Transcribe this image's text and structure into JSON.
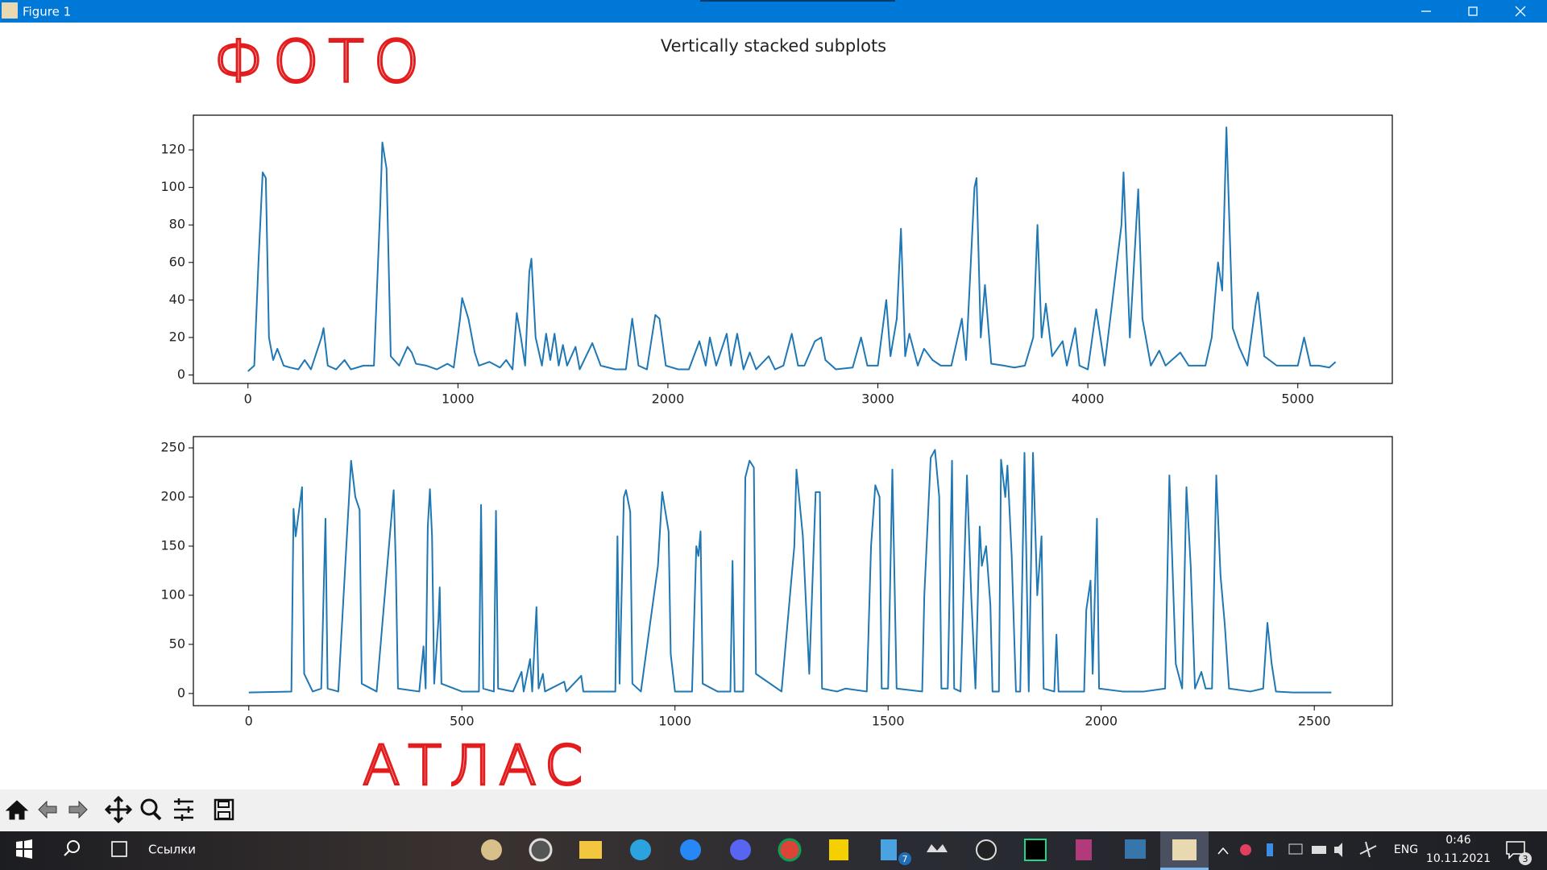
{
  "window": {
    "title": "Figure 1"
  },
  "figure": {
    "title": "Vertically stacked subplots"
  },
  "annotations": [
    "ФОТО",
    "АТЛАС"
  ],
  "taskbar": {
    "search_label": "Ссылки",
    "language": "ENG",
    "time": "0:46",
    "date": "10.11.2021",
    "badges": [
      "7",
      "3"
    ]
  },
  "chart_data": [
    {
      "type": "line",
      "color": "#1f77b4",
      "xlim": [
        -260,
        5450
      ],
      "ylim": [
        -4.5,
        138.5
      ],
      "xticks": [
        0,
        1000,
        2000,
        3000,
        4000,
        5000
      ],
      "yticks": [
        0,
        20,
        40,
        60,
        80,
        100,
        120
      ],
      "x": [
        0,
        30,
        50,
        70,
        85,
        100,
        120,
        140,
        170,
        200,
        240,
        270,
        300,
        350,
        360,
        380,
        420,
        460,
        490,
        550,
        600,
        630,
        640,
        660,
        680,
        720,
        760,
        780,
        800,
        850,
        900,
        950,
        980,
        1010,
        1020,
        1050,
        1080,
        1100,
        1150,
        1200,
        1230,
        1260,
        1280,
        1300,
        1320,
        1340,
        1350,
        1370,
        1400,
        1420,
        1440,
        1460,
        1480,
        1500,
        1520,
        1560,
        1580,
        1640,
        1680,
        1750,
        1800,
        1830,
        1860,
        1900,
        1940,
        1960,
        1990,
        2050,
        2100,
        2150,
        2180,
        2200,
        2230,
        2280,
        2300,
        2330,
        2360,
        2390,
        2420,
        2480,
        2510,
        2550,
        2590,
        2620,
        2650,
        2700,
        2730,
        2750,
        2800,
        2880,
        2920,
        2950,
        3000,
        3040,
        3060,
        3090,
        3110,
        3130,
        3150,
        3190,
        3220,
        3260,
        3300,
        3350,
        3400,
        3420,
        3460,
        3470,
        3490,
        3510,
        3540,
        3600,
        3650,
        3700,
        3740,
        3760,
        3780,
        3800,
        3830,
        3880,
        3900,
        3940,
        3960,
        4000,
        4040,
        4060,
        4080,
        4160,
        4170,
        4200,
        4240,
        4260,
        4300,
        4340,
        4370,
        4440,
        4480,
        4560,
        4590,
        4620,
        4640,
        4660,
        4690,
        4720,
        4760,
        4800,
        4810,
        4840,
        4900,
        5000,
        5030,
        5060,
        5100,
        5150,
        5180
      ],
      "values": [
        2,
        5,
        60,
        108,
        105,
        20,
        8,
        14,
        5,
        4,
        3,
        8,
        3,
        20,
        25,
        5,
        3,
        8,
        3,
        5,
        5,
        90,
        124,
        110,
        10,
        5,
        15,
        12,
        6,
        5,
        3,
        6,
        4,
        30,
        41,
        30,
        12,
        5,
        7,
        4,
        8,
        3,
        33,
        20,
        5,
        55,
        62,
        20,
        5,
        22,
        8,
        22,
        5,
        16,
        5,
        15,
        3,
        17,
        5,
        3,
        3,
        30,
        5,
        3,
        32,
        30,
        5,
        3,
        3,
        18,
        5,
        20,
        5,
        22,
        5,
        22,
        3,
        12,
        3,
        10,
        3,
        5,
        22,
        5,
        5,
        18,
        20,
        8,
        3,
        4,
        20,
        5,
        5,
        40,
        10,
        30,
        78,
        10,
        22,
        5,
        14,
        8,
        5,
        5,
        30,
        8,
        100,
        105,
        20,
        48,
        6,
        5,
        4,
        5,
        20,
        80,
        20,
        38,
        10,
        18,
        5,
        25,
        5,
        3,
        35,
        20,
        5,
        80,
        108,
        20,
        99,
        30,
        5,
        13,
        5,
        12,
        5,
        5,
        20,
        60,
        45,
        132,
        25,
        15,
        5,
        38,
        44,
        10,
        5,
        5,
        20,
        5,
        5,
        4,
        7
      ]
    },
    {
      "type": "line",
      "color": "#1f77b4",
      "xlim": [
        -130,
        2683
      ],
      "ylim": [
        -12.4,
        261.5
      ],
      "xticks": [
        0,
        500,
        1000,
        1500,
        2000,
        2500
      ],
      "yticks": [
        0,
        50,
        100,
        150,
        200,
        250
      ],
      "x": [
        0,
        100,
        105,
        110,
        125,
        130,
        150,
        170,
        180,
        185,
        210,
        240,
        250,
        260,
        265,
        300,
        340,
        345,
        350,
        400,
        410,
        415,
        420,
        425,
        430,
        435,
        445,
        448,
        452,
        500,
        540,
        545,
        550,
        575,
        580,
        585,
        620,
        640,
        645,
        660,
        665,
        675,
        680,
        690,
        695,
        740,
        745,
        780,
        785,
        860,
        865,
        870,
        880,
        885,
        895,
        900,
        920,
        960,
        970,
        985,
        990,
        1000,
        1040,
        1050,
        1055,
        1060,
        1065,
        1100,
        1130,
        1135,
        1140,
        1160,
        1165,
        1175,
        1185,
        1190,
        1250,
        1280,
        1285,
        1300,
        1315,
        1330,
        1340,
        1345,
        1380,
        1400,
        1450,
        1460,
        1470,
        1480,
        1485,
        1500,
        1510,
        1520,
        1580,
        1585,
        1600,
        1610,
        1620,
        1625,
        1640,
        1650,
        1655,
        1670,
        1685,
        1695,
        1705,
        1715,
        1720,
        1730,
        1740,
        1745,
        1760,
        1765,
        1775,
        1780,
        1790,
        1800,
        1810,
        1820,
        1830,
        1840,
        1850,
        1860,
        1865,
        1890,
        1895,
        1900,
        1960,
        1965,
        1975,
        1980,
        1990,
        1995,
        2050,
        2100,
        2150,
        2160,
        2175,
        2190,
        2200,
        2210,
        2220,
        2235,
        2245,
        2260,
        2270,
        2280,
        2290,
        2300,
        2350,
        2380,
        2390,
        2400,
        2410,
        2450,
        2540
      ],
      "values": [
        1,
        2,
        188,
        160,
        210,
        20,
        2,
        5,
        178,
        5,
        2,
        237,
        200,
        187,
        10,
        2,
        207,
        130,
        5,
        2,
        48,
        5,
        170,
        208,
        160,
        10,
        75,
        108,
        10,
        2,
        2,
        192,
        5,
        2,
        186,
        5,
        2,
        22,
        2,
        35,
        2,
        88,
        5,
        20,
        2,
        12,
        2,
        18,
        2,
        2,
        160,
        10,
        200,
        207,
        185,
        10,
        2,
        130,
        205,
        165,
        40,
        2,
        2,
        150,
        140,
        165,
        10,
        2,
        2,
        135,
        2,
        2,
        220,
        237,
        230,
        20,
        2,
        150,
        228,
        160,
        20,
        205,
        205,
        5,
        2,
        5,
        2,
        150,
        212,
        200,
        5,
        5,
        228,
        5,
        2,
        100,
        240,
        248,
        200,
        5,
        5,
        237,
        5,
        2,
        222,
        100,
        5,
        170,
        130,
        150,
        90,
        2,
        2,
        238,
        200,
        232,
        140,
        2,
        2,
        245,
        2,
        245,
        100,
        160,
        5,
        2,
        60,
        2,
        2,
        85,
        115,
        20,
        178,
        5,
        2,
        2,
        5,
        222,
        30,
        5,
        210,
        130,
        5,
        22,
        5,
        5,
        222,
        120,
        70,
        5,
        2,
        5,
        72,
        30,
        2,
        1,
        1
      ]
    }
  ]
}
